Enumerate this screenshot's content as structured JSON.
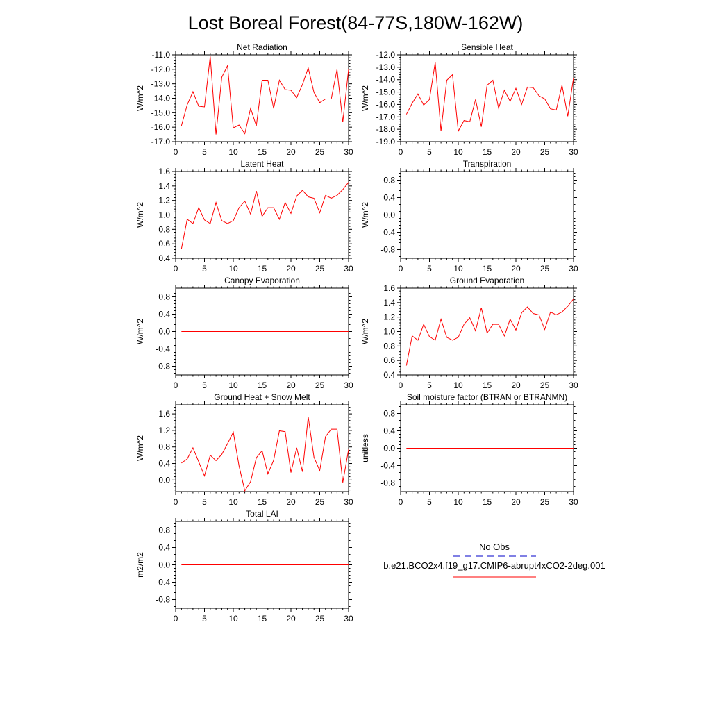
{
  "title": "Lost Boreal Forest(84-77S,180W-162W)",
  "colors": {
    "model": "#ff0000",
    "obs": "#0000c8",
    "axis": "#000000",
    "background": "#ffffff"
  },
  "legend": {
    "obs_label": "No Obs",
    "model_label": "b.e21.BCO2x4.f19_g17.CMIP6-abrupt4xCO2-2deg.001"
  },
  "chart_data": [
    {
      "type": "line",
      "title": "Net Radiation",
      "ylabel": "W/m^2",
      "xlim": [
        0,
        30
      ],
      "ylim": [
        -17,
        -11
      ],
      "xticks": [
        0,
        5,
        10,
        15,
        20,
        25,
        30
      ],
      "yticks": [
        -17,
        -16,
        -15,
        -14,
        -13,
        -12,
        -11
      ],
      "ytick_labels": [
        "-17.0",
        "-16.0",
        "-15.0",
        "-14.0",
        "-13.0",
        "-12.0",
        "-11.0"
      ],
      "series": [
        {
          "name": "b.e21.BCO2x4.f19_g17.CMIP6-abrupt4xCO2-2deg.001",
          "x": [
            1,
            2,
            3,
            4,
            5,
            6,
            7,
            8,
            9,
            10,
            11,
            12,
            13,
            14,
            15,
            16,
            17,
            18,
            19,
            20,
            21,
            22,
            23,
            24,
            25,
            26,
            27,
            28,
            29,
            30
          ],
          "values": [
            -15.9,
            -14.45,
            -13.55,
            -14.55,
            -14.6,
            -11.1,
            -16.5,
            -12.55,
            -11.75,
            -16.05,
            -15.85,
            -16.45,
            -14.7,
            -15.9,
            -12.75,
            -12.75,
            -14.7,
            -12.75,
            -13.4,
            -13.45,
            -13.95,
            -13.05,
            -11.9,
            -13.6,
            -14.3,
            -14.05,
            -14.05,
            -12.0,
            -15.65,
            -12.0
          ]
        }
      ]
    },
    {
      "type": "line",
      "title": "Sensible Heat",
      "ylabel": "W/m^2",
      "xlim": [
        0,
        30
      ],
      "ylim": [
        -19,
        -12
      ],
      "xticks": [
        0,
        5,
        10,
        15,
        20,
        25,
        30
      ],
      "yticks": [
        -19,
        -18,
        -17,
        -16,
        -15,
        -14,
        -13,
        -12
      ],
      "ytick_labels": [
        "-19.0",
        "-18.0",
        "-17.0",
        "-16.0",
        "-15.0",
        "-14.0",
        "-13.0",
        "-12.0"
      ],
      "series": [
        {
          "name": "b.e21.BCO2x4.f19_g17.CMIP6-abrupt4xCO2-2deg.001",
          "x": [
            1,
            2,
            3,
            4,
            5,
            6,
            7,
            8,
            9,
            10,
            11,
            12,
            13,
            14,
            15,
            16,
            17,
            18,
            19,
            20,
            21,
            22,
            23,
            24,
            25,
            26,
            27,
            28,
            29,
            30
          ],
          "values": [
            -16.8,
            -15.9,
            -15.15,
            -16.05,
            -15.6,
            -12.6,
            -18.15,
            -14.05,
            -13.6,
            -18.15,
            -17.3,
            -17.4,
            -15.6,
            -17.8,
            -14.45,
            -14.05,
            -16.3,
            -14.85,
            -15.75,
            -14.7,
            -16.0,
            -14.6,
            -14.65,
            -15.3,
            -15.55,
            -16.35,
            -16.45,
            -14.45,
            -16.95,
            -13.85
          ]
        }
      ]
    },
    {
      "type": "line",
      "title": "Latent Heat",
      "ylabel": "W/m^2",
      "xlim": [
        0,
        30
      ],
      "ylim": [
        0.4,
        1.6
      ],
      "xticks": [
        0,
        5,
        10,
        15,
        20,
        25,
        30
      ],
      "yticks": [
        0.4,
        0.6,
        0.8,
        1.0,
        1.2,
        1.4,
        1.6
      ],
      "ytick_labels": [
        "0.4",
        "0.6",
        "0.8",
        "1.0",
        "1.2",
        "1.4",
        "1.6"
      ],
      "series": [
        {
          "name": "b.e21.BCO2x4.f19_g17.CMIP6-abrupt4xCO2-2deg.001",
          "x": [
            1,
            2,
            3,
            4,
            5,
            6,
            7,
            8,
            9,
            10,
            11,
            12,
            13,
            14,
            15,
            16,
            17,
            18,
            19,
            20,
            21,
            22,
            23,
            24,
            25,
            26,
            27,
            28,
            29,
            30
          ],
          "values": [
            0.53,
            0.94,
            0.88,
            1.1,
            0.93,
            0.88,
            1.17,
            0.92,
            0.88,
            0.92,
            1.1,
            1.19,
            1.01,
            1.33,
            0.98,
            1.1,
            1.1,
            0.94,
            1.17,
            1.02,
            1.26,
            1.34,
            1.25,
            1.23,
            1.03,
            1.27,
            1.23,
            1.27,
            1.35,
            1.45
          ]
        }
      ]
    },
    {
      "type": "line",
      "title": "Transpiration",
      "ylabel": "W/m^2",
      "xlim": [
        0,
        30
      ],
      "ylim": [
        -1.0,
        1.0
      ],
      "xticks": [
        0,
        5,
        10,
        15,
        20,
        25,
        30
      ],
      "yticks": [
        -0.8,
        -0.4,
        0.0,
        0.4,
        0.8
      ],
      "ytick_labels": [
        "-0.8",
        "-0.4",
        "0.0",
        "0.4",
        "0.8"
      ],
      "series": [
        {
          "name": "b.e21.BCO2x4.f19_g17.CMIP6-abrupt4xCO2-2deg.001",
          "x": [
            1,
            2,
            3,
            4,
            5,
            6,
            7,
            8,
            9,
            10,
            11,
            12,
            13,
            14,
            15,
            16,
            17,
            18,
            19,
            20,
            21,
            22,
            23,
            24,
            25,
            26,
            27,
            28,
            29,
            30
          ],
          "values": [
            0,
            0,
            0,
            0,
            0,
            0,
            0,
            0,
            0,
            0,
            0,
            0,
            0,
            0,
            0,
            0,
            0,
            0,
            0,
            0,
            0,
            0,
            0,
            0,
            0,
            0,
            0,
            0,
            0,
            0
          ]
        }
      ]
    },
    {
      "type": "line",
      "title": "Canopy Evaporation",
      "ylabel": "W/m^2",
      "xlim": [
        0,
        30
      ],
      "ylim": [
        -1.0,
        1.0
      ],
      "xticks": [
        0,
        5,
        10,
        15,
        20,
        25,
        30
      ],
      "yticks": [
        -0.8,
        -0.4,
        0.0,
        0.4,
        0.8
      ],
      "ytick_labels": [
        "-0.8",
        "-0.4",
        "0.0",
        "0.4",
        "0.8"
      ],
      "series": [
        {
          "name": "b.e21.BCO2x4.f19_g17.CMIP6-abrupt4xCO2-2deg.001",
          "x": [
            1,
            2,
            3,
            4,
            5,
            6,
            7,
            8,
            9,
            10,
            11,
            12,
            13,
            14,
            15,
            16,
            17,
            18,
            19,
            20,
            21,
            22,
            23,
            24,
            25,
            26,
            27,
            28,
            29,
            30
          ],
          "values": [
            0,
            0,
            0,
            0,
            0,
            0,
            0,
            0,
            0,
            0,
            0,
            0,
            0,
            0,
            0,
            0,
            0,
            0,
            0,
            0,
            0,
            0,
            0,
            0,
            0,
            0,
            0,
            0,
            0,
            0
          ]
        }
      ]
    },
    {
      "type": "line",
      "title": "Ground Evaporation",
      "ylabel": "W/m^2",
      "xlim": [
        0,
        30
      ],
      "ylim": [
        0.4,
        1.6
      ],
      "xticks": [
        0,
        5,
        10,
        15,
        20,
        25,
        30
      ],
      "yticks": [
        0.4,
        0.6,
        0.8,
        1.0,
        1.2,
        1.4,
        1.6
      ],
      "ytick_labels": [
        "0.4",
        "0.6",
        "0.8",
        "1.0",
        "1.2",
        "1.4",
        "1.6"
      ],
      "series": [
        {
          "name": "b.e21.BCO2x4.f19_g17.CMIP6-abrupt4xCO2-2deg.001",
          "x": [
            1,
            2,
            3,
            4,
            5,
            6,
            7,
            8,
            9,
            10,
            11,
            12,
            13,
            14,
            15,
            16,
            17,
            18,
            19,
            20,
            21,
            22,
            23,
            24,
            25,
            26,
            27,
            28,
            29,
            30
          ],
          "values": [
            0.53,
            0.94,
            0.88,
            1.1,
            0.93,
            0.88,
            1.17,
            0.92,
            0.88,
            0.92,
            1.1,
            1.19,
            1.01,
            1.33,
            0.98,
            1.1,
            1.1,
            0.94,
            1.17,
            1.02,
            1.26,
            1.34,
            1.25,
            1.23,
            1.03,
            1.27,
            1.23,
            1.27,
            1.35,
            1.45
          ]
        }
      ]
    },
    {
      "type": "line",
      "title": "Ground Heat + Snow Melt",
      "ylabel": "W/m^2",
      "xlim": [
        0,
        30
      ],
      "ylim": [
        -0.28,
        1.82
      ],
      "xticks": [
        0,
        5,
        10,
        15,
        20,
        25,
        30
      ],
      "yticks": [
        0.0,
        0.4,
        0.8,
        1.2,
        1.6
      ],
      "ytick_labels": [
        "0.0",
        "0.4",
        "0.8",
        "1.2",
        "1.6"
      ],
      "series": [
        {
          "name": "b.e21.BCO2x4.f19_g17.CMIP6-abrupt4xCO2-2deg.001",
          "x": [
            1,
            2,
            3,
            4,
            5,
            6,
            7,
            8,
            9,
            10,
            11,
            12,
            13,
            14,
            15,
            16,
            17,
            18,
            19,
            20,
            21,
            22,
            23,
            24,
            25,
            26,
            27,
            28,
            29,
            30
          ],
          "values": [
            0.41,
            0.51,
            0.78,
            0.44,
            0.1,
            0.6,
            0.47,
            0.62,
            0.88,
            1.16,
            0.34,
            -0.26,
            -0.04,
            0.54,
            0.71,
            0.15,
            0.48,
            1.19,
            1.17,
            0.18,
            0.78,
            0.2,
            1.53,
            0.55,
            0.23,
            1.05,
            1.23,
            1.23,
            -0.06,
            0.74
          ]
        }
      ]
    },
    {
      "type": "line",
      "title": "Soil moisture factor (BTRAN or BTRANMN)",
      "ylabel": "unitless",
      "xlim": [
        0,
        30
      ],
      "ylim": [
        -1.0,
        1.0
      ],
      "xticks": [
        0,
        5,
        10,
        15,
        20,
        25,
        30
      ],
      "yticks": [
        -0.8,
        -0.4,
        0.0,
        0.4,
        0.8
      ],
      "ytick_labels": [
        "-0.8",
        "-0.4",
        "0.0",
        "0.4",
        "0.8"
      ],
      "series": [
        {
          "name": "b.e21.BCO2x4.f19_g17.CMIP6-abrupt4xCO2-2deg.001",
          "x": [
            1,
            2,
            3,
            4,
            5,
            6,
            7,
            8,
            9,
            10,
            11,
            12,
            13,
            14,
            15,
            16,
            17,
            18,
            19,
            20,
            21,
            22,
            23,
            24,
            25,
            26,
            27,
            28,
            29,
            30
          ],
          "values": [
            0,
            0,
            0,
            0,
            0,
            0,
            0,
            0,
            0,
            0,
            0,
            0,
            0,
            0,
            0,
            0,
            0,
            0,
            0,
            0,
            0,
            0,
            0,
            0,
            0,
            0,
            0,
            0,
            0,
            0
          ]
        }
      ]
    },
    {
      "type": "line",
      "title": "Total LAI",
      "ylabel": "m2/m2",
      "xlim": [
        0,
        30
      ],
      "ylim": [
        -1.0,
        1.0
      ],
      "xticks": [
        0,
        5,
        10,
        15,
        20,
        25,
        30
      ],
      "yticks": [
        -0.8,
        -0.4,
        0.0,
        0.4,
        0.8
      ],
      "ytick_labels": [
        "-0.8",
        "-0.4",
        "0.0",
        "0.4",
        "0.8"
      ],
      "series": [
        {
          "name": "b.e21.BCO2x4.f19_g17.CMIP6-abrupt4xCO2-2deg.001",
          "x": [
            1,
            2,
            3,
            4,
            5,
            6,
            7,
            8,
            9,
            10,
            11,
            12,
            13,
            14,
            15,
            16,
            17,
            18,
            19,
            20,
            21,
            22,
            23,
            24,
            25,
            26,
            27,
            28,
            29,
            30
          ],
          "values": [
            0,
            0,
            0,
            0,
            0,
            0,
            0,
            0,
            0,
            0,
            0,
            0,
            0,
            0,
            0,
            0,
            0,
            0,
            0,
            0,
            0,
            0,
            0,
            0,
            0,
            0,
            0,
            0,
            0,
            0
          ]
        }
      ]
    }
  ]
}
